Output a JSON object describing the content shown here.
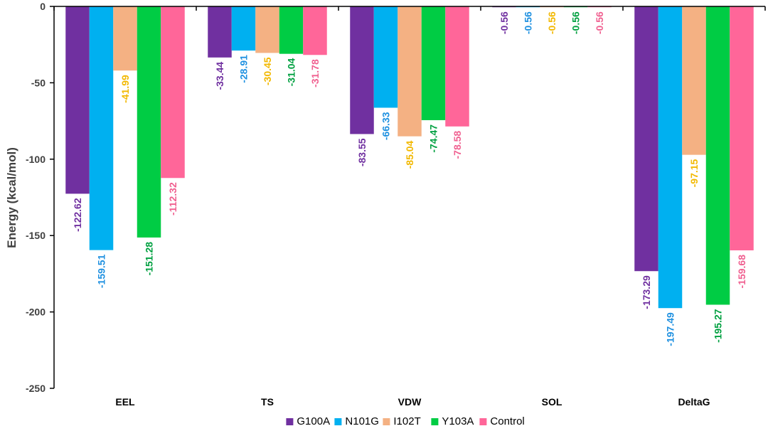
{
  "chart_data": {
    "type": "bar",
    "title": "",
    "xlabel": "",
    "ylabel": "Energy (kcal/mol)",
    "ylim": [
      -250,
      0
    ],
    "yticks": [
      0,
      -50,
      -100,
      -150,
      -200,
      -250
    ],
    "ytick_labels": [
      "0",
      "-50",
      "-100",
      "-150",
      "-200",
      "-250"
    ],
    "categories": [
      "EEL",
      "TS",
      "VDW",
      "SOL",
      "DeltaG"
    ],
    "series": [
      {
        "name": "G100A",
        "color": "#7030A0",
        "label_color": "#7030A0",
        "values": [
          -122.62,
          -33.44,
          -83.55,
          -0.56,
          -173.29
        ],
        "labels": [
          "-122.62",
          "-33.44",
          "-83.55",
          "-0.56",
          "-173.29"
        ]
      },
      {
        "name": "N101G",
        "color": "#00B0F0",
        "label_color": "#1E90E0",
        "values": [
          -159.51,
          -28.91,
          -66.33,
          -0.56,
          -197.49
        ],
        "labels": [
          "-159.51",
          "-28.91",
          "-66.33",
          "-0.56",
          "-197.49"
        ]
      },
      {
        "name": "I102T",
        "color": "#F4B183",
        "label_color": "#F2B800",
        "values": [
          -41.99,
          -30.45,
          -85.04,
          -0.56,
          -97.15
        ],
        "labels": [
          "-41.99",
          "-30.45",
          "-85.04",
          "-0.56",
          "-97.15"
        ]
      },
      {
        "name": "Y103A",
        "color": "#00CC44",
        "label_color": "#00A040",
        "values": [
          -151.28,
          -31.04,
          -74.47,
          -0.56,
          -195.27
        ],
        "labels": [
          "-151.28",
          "-31.04",
          "-74.47",
          "-0.56",
          "-195.27"
        ]
      },
      {
        "name": "Control",
        "color": "#FF6699",
        "label_color": "#F06090",
        "values": [
          -112.32,
          -31.78,
          -78.58,
          -0.56,
          -159.68
        ],
        "labels": [
          "-112.32",
          "-31.78",
          "-78.58",
          "-0.56",
          "-159.68"
        ]
      }
    ],
    "legend_position": "bottom",
    "grid": false
  }
}
